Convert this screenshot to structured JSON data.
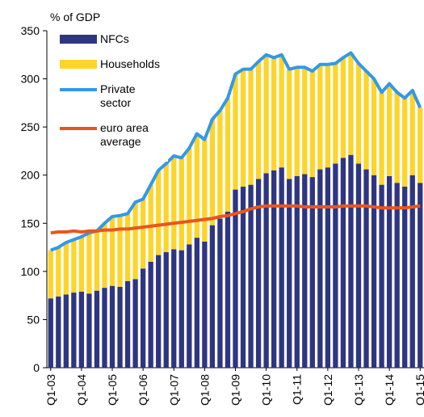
{
  "chart_data": {
    "type": "bar",
    "stacked": true,
    "y_label": "% of GDP",
    "categories": [
      "Q1-03",
      null,
      null,
      null,
      "Q1-04",
      null,
      null,
      null,
      "Q1-05",
      null,
      null,
      null,
      "Q1-06",
      null,
      null,
      null,
      "Q1-07",
      null,
      null,
      null,
      "Q1-08",
      null,
      null,
      null,
      "Q1-09",
      null,
      null,
      null,
      "Q1-10",
      null,
      null,
      null,
      "Q1-11",
      null,
      null,
      null,
      "Q1-12",
      null,
      null,
      null,
      "Q1-13",
      null,
      null,
      null,
      "Q1-14",
      null,
      null,
      null,
      "Q1-15"
    ],
    "series": [
      {
        "name": "NFCs",
        "type": "bar",
        "color": "#2e3581",
        "values": [
          72,
          74,
          76,
          78,
          79,
          77,
          80,
          83,
          85,
          84,
          90,
          92,
          103,
          110,
          117,
          120,
          123,
          122,
          128,
          135,
          131,
          148,
          155,
          162,
          185,
          188,
          190,
          196,
          202,
          205,
          208,
          196,
          199,
          201,
          198,
          206,
          208,
          212,
          218,
          221,
          212,
          206,
          200,
          190,
          199,
          192,
          188,
          200,
          192
        ]
      },
      {
        "name": "Households",
        "type": "bar",
        "color": "#fdd42a",
        "values": [
          50,
          51,
          54,
          55,
          57,
          63,
          62,
          67,
          72,
          74,
          70,
          80,
          72,
          80,
          88,
          92,
          97,
          96,
          100,
          108,
          106,
          110,
          112,
          118,
          120,
          122,
          120,
          122,
          123,
          117,
          117,
          114,
          113,
          111,
          110,
          109,
          107,
          104,
          104,
          106,
          104,
          102,
          100,
          96,
          96,
          94,
          92,
          88,
          78
        ]
      },
      {
        "name": "Private sector",
        "type": "line",
        "color": "#3399e6",
        "values": [
          122,
          125,
          130,
          133,
          136,
          140,
          142,
          150,
          157,
          158,
          160,
          172,
          175,
          190,
          205,
          212,
          220,
          218,
          228,
          243,
          237,
          258,
          267,
          280,
          305,
          310,
          310,
          318,
          325,
          322,
          325,
          310,
          312,
          312,
          308,
          315,
          315,
          316,
          322,
          327,
          316,
          308,
          300,
          286,
          295,
          286,
          280,
          288,
          270
        ]
      },
      {
        "name": "euro area average",
        "type": "line",
        "color": "#e8561e",
        "values": [
          140,
          141,
          141,
          142,
          141,
          142,
          142,
          143,
          143,
          144,
          144,
          145,
          146,
          147,
          148,
          149,
          150,
          151,
          152,
          153,
          154,
          155,
          157,
          158,
          160,
          162,
          165,
          167,
          168,
          168,
          168,
          168,
          168,
          167,
          167,
          167,
          167,
          167,
          168,
          168,
          168,
          168,
          167,
          166,
          166,
          166,
          166,
          167,
          168
        ]
      }
    ],
    "ylim": [
      0,
      350
    ],
    "yticks": [
      0,
      50,
      100,
      150,
      200,
      250,
      300,
      350
    ],
    "grid": false
  }
}
